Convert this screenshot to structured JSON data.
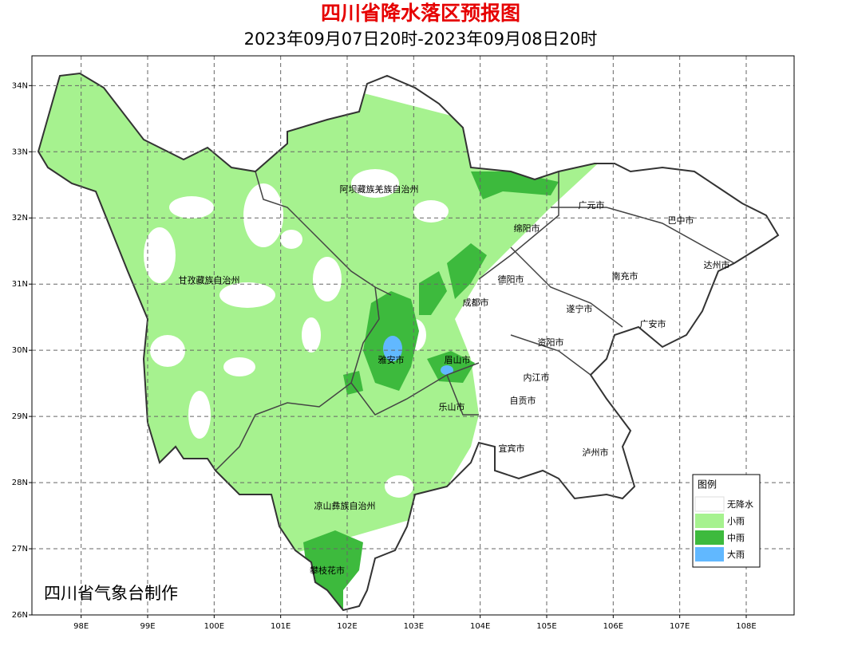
{
  "header": {
    "title": "四川省降水落区预报图",
    "subtitle": "2023年09月07日20时-2023年09月08日20时"
  },
  "map": {
    "xlim": [
      97.26,
      108.72
    ],
    "ylim": [
      26,
      34.45
    ],
    "xticks": [
      {
        "value": 98,
        "label": "98E"
      },
      {
        "value": 99,
        "label": "99E"
      },
      {
        "value": 100,
        "label": "100E"
      },
      {
        "value": 101,
        "label": "101E"
      },
      {
        "value": 102,
        "label": "102E"
      },
      {
        "value": 103,
        "label": "103E"
      },
      {
        "value": 104,
        "label": "104E"
      },
      {
        "value": 105,
        "label": "105E"
      },
      {
        "value": 106,
        "label": "106E"
      },
      {
        "value": 107,
        "label": "107E"
      },
      {
        "value": 108,
        "label": "108E"
      }
    ],
    "yticks": [
      {
        "value": 26,
        "label": "26N"
      },
      {
        "value": 27,
        "label": "27N"
      },
      {
        "value": 28,
        "label": "28N"
      },
      {
        "value": 29,
        "label": "29N"
      },
      {
        "value": 30,
        "label": "30N"
      },
      {
        "value": 31,
        "label": "31N"
      },
      {
        "value": 32,
        "label": "32N"
      },
      {
        "value": 33,
        "label": "33N"
      },
      {
        "value": 34,
        "label": "34N"
      }
    ],
    "grid": true,
    "places": [
      "阿坝藏族羌族自治州",
      "甘孜藏族自治州",
      "凉山彝族自治州",
      "攀枝花市",
      "雅安市",
      "眉山市",
      "乐山市",
      "成都市",
      "德阳市",
      "绵阳市",
      "广元市",
      "巴中市",
      "达州市",
      "南充市",
      "遂宁市",
      "广安市",
      "资阳市",
      "内江市",
      "自贡市",
      "宜宾市",
      "泸州市"
    ]
  },
  "legend": {
    "title": "图例",
    "items": [
      {
        "name": "无降水",
        "color": "#ffffff"
      },
      {
        "name": "小雨",
        "color": "#a6f28f"
      },
      {
        "name": "中雨",
        "color": "#3dba3d"
      },
      {
        "name": "大雨",
        "color": "#61b8ff"
      }
    ]
  },
  "credit": "四川省气象台制作"
}
